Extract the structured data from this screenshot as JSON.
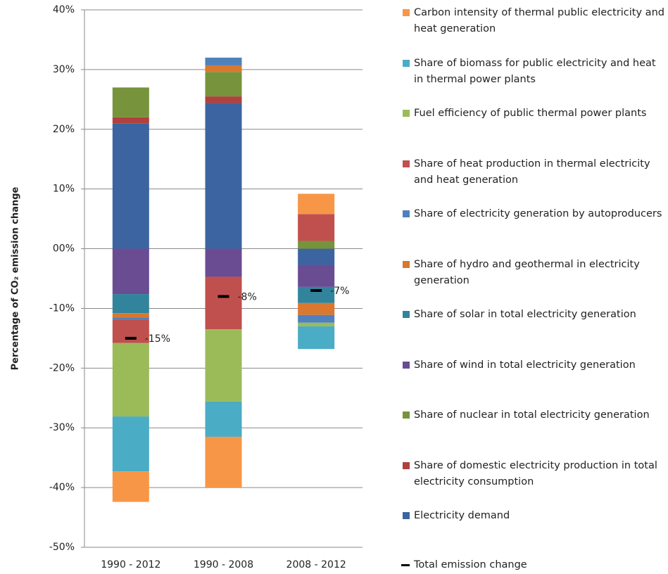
{
  "chart_data": {
    "type": "stacked-bar",
    "y_label": "Percentage of CO₂ emission change",
    "categories": [
      "1990 - 2012",
      "1990 - 2008",
      "2008 - 2012"
    ],
    "ylim": [
      -50,
      40
    ],
    "yticks": [
      {
        "value": -50,
        "label": "-50%"
      },
      {
        "value": -40,
        "label": "-40%"
      },
      {
        "value": -30,
        "label": "-30%"
      },
      {
        "value": -20,
        "label": "-20%"
      },
      {
        "value": -10,
        "label": "-10%"
      },
      {
        "value": 0,
        "label": "00%"
      },
      {
        "value": 10,
        "label": "10%"
      },
      {
        "value": 20,
        "label": "20%"
      },
      {
        "value": 30,
        "label": "30%"
      },
      {
        "value": 40,
        "label": "40%"
      }
    ],
    "grid": true,
    "series": [
      {
        "name": "Carbon intensity of thermal public electricity and heat generation",
        "color": "#f79646",
        "values": [
          -5.1,
          -8.5,
          3.4
        ]
      },
      {
        "name": "Share of biomass for public electricity and heat in thermal power plants",
        "color": "#4bacc6",
        "values": [
          -9.2,
          -5.9,
          -3.8
        ]
      },
      {
        "name": "Fuel efficiency of public thermal power plants",
        "color": "#9bbb59",
        "values": [
          -12.3,
          -12.1,
          -0.6
        ]
      },
      {
        "name": "Share of heat production in thermal electricity and heat generation",
        "color": "#c0504d",
        "values": [
          -3.9,
          -8.8,
          4.5
        ]
      },
      {
        "name": "Share of electricity generation by autoproducers",
        "color": "#4f81bd",
        "values": [
          -0.4,
          1.3,
          -1.3
        ]
      },
      {
        "name": "Share of hydro and geothermal in electricity generation",
        "color": "#d9782e",
        "values": [
          -0.7,
          1.1,
          -2.0
        ]
      },
      {
        "name": "Share of solar in total electricity generation",
        "color": "#31849b",
        "values": [
          -3.2,
          0,
          -2.7
        ]
      },
      {
        "name": "Share of wind in total electricity generation",
        "color": "#6a4c93",
        "values": [
          -7.6,
          -4.7,
          -3.7
        ]
      },
      {
        "name": "Share of nuclear in total electricity generation",
        "color": "#77933c",
        "values": [
          5,
          4.1,
          1.3
        ]
      },
      {
        "name": "Share of domestic electricity production in total electricity consumption",
        "color": "#b0413e",
        "values": [
          1,
          1.1,
          0
        ]
      },
      {
        "name": "Electricity demand",
        "color": "#3b64a0",
        "values": [
          21,
          24.4,
          -2.7
        ]
      }
    ],
    "total": {
      "name": "Total emission change",
      "color": "#000000",
      "values": [
        -15,
        -8,
        -7
      ],
      "value_labels": [
        "-15%",
        "-8%",
        "-7%"
      ]
    }
  }
}
